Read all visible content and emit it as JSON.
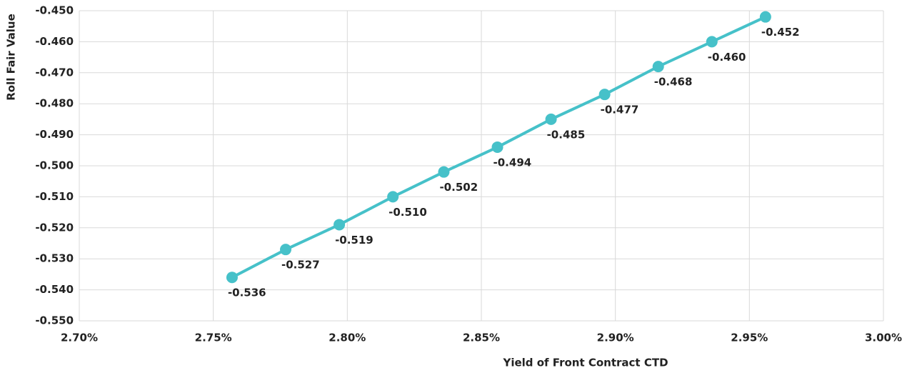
{
  "chart_data": {
    "type": "line",
    "x_label": "Yield of Front Contract CTD",
    "y_label": "Roll Fair Value",
    "x": [
      2.757,
      2.777,
      2.797,
      2.817,
      2.836,
      2.856,
      2.876,
      2.896,
      2.916,
      2.936,
      2.956
    ],
    "series": [
      {
        "color": "#46c1c9",
        "values": [
          -0.536,
          -0.527,
          -0.519,
          -0.51,
          -0.502,
          -0.494,
          -0.485,
          -0.477,
          -0.468,
          -0.46,
          -0.452
        ],
        "value_labels": [
          "-0.536",
          "-0.527",
          "-0.519",
          "-0.510",
          "-0.502",
          "-0.494",
          "-0.485",
          "-0.477",
          "-0.468",
          "-0.460",
          "-0.452"
        ]
      }
    ],
    "xlim": [
      2.7,
      3.0
    ],
    "xticks": [
      {
        "value": 2.7,
        "label": "2.70%"
      },
      {
        "value": 2.75,
        "label": "2.75%"
      },
      {
        "value": 2.8,
        "label": "2.80%"
      },
      {
        "value": 2.85,
        "label": "2.85%"
      },
      {
        "value": 2.9,
        "label": "2.90%"
      },
      {
        "value": 2.95,
        "label": "2.95%"
      },
      {
        "value": 3.0,
        "label": "3.00%"
      }
    ],
    "ylim": [
      -0.55,
      -0.45
    ],
    "yticks": [
      {
        "value": -0.45,
        "label": "-0.450"
      },
      {
        "value": -0.46,
        "label": "-0.460"
      },
      {
        "value": -0.47,
        "label": "-0.470"
      },
      {
        "value": -0.48,
        "label": "-0.480"
      },
      {
        "value": -0.49,
        "label": "-0.490"
      },
      {
        "value": -0.5,
        "label": "-0.500"
      },
      {
        "value": -0.51,
        "label": "-0.510"
      },
      {
        "value": -0.52,
        "label": "-0.520"
      },
      {
        "value": -0.53,
        "label": "-0.530"
      },
      {
        "value": -0.54,
        "label": "-0.540"
      },
      {
        "value": -0.55,
        "label": "-0.550"
      }
    ],
    "grid": true
  }
}
